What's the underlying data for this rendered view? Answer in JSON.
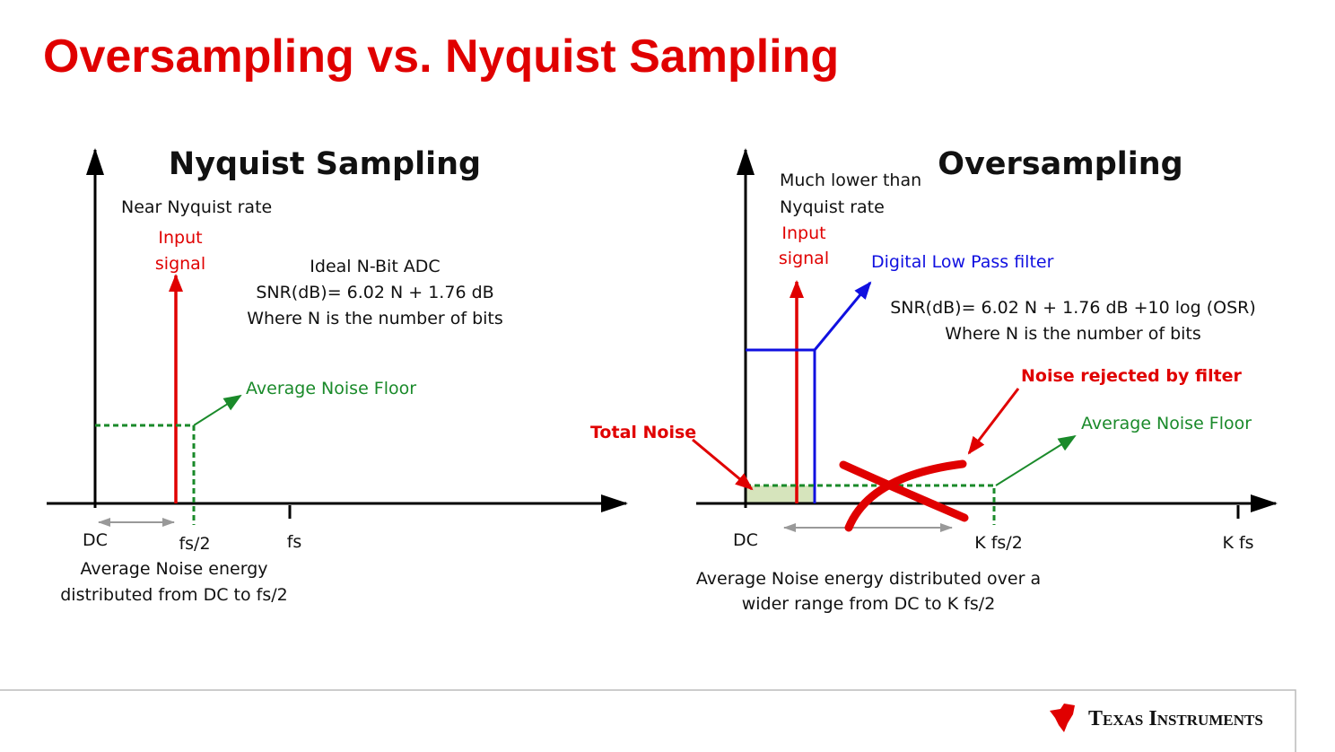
{
  "title": "Oversampling vs. Nyquist Sampling",
  "nyquist": {
    "title": "Nyquist Sampling",
    "rate_note": "Near Nyquist rate",
    "signal_label": [
      "Input",
      "signal"
    ],
    "adc_text": [
      "Ideal N-Bit ADC",
      "SNR(dB)= 6.02 N + 1.76 dB",
      "Where N is the number of bits"
    ],
    "noise_floor": "Average Noise Floor",
    "axis_labels": [
      "DC",
      "fs/2",
      "fs"
    ],
    "caption": [
      "Average Noise energy",
      "distributed from DC to fs/2"
    ]
  },
  "oversampling": {
    "title": "Oversampling",
    "rate_note": [
      "Much lower than",
      "Nyquist rate"
    ],
    "signal_label": [
      "Input",
      "signal"
    ],
    "filter_label": "Digital Low Pass filter",
    "snr_text": [
      "SNR(dB)= 6.02 N + 1.76 dB +10 log (OSR)",
      "Where N is the number of bits"
    ],
    "rejected_label": "Noise rejected by filter",
    "total_noise": "Total Noise",
    "noise_floor": "Average Noise Floor",
    "axis_labels": [
      "DC",
      "K fs/2",
      "K fs"
    ],
    "caption": [
      "Average Noise energy distributed over a",
      "wider range from DC to K fs/2"
    ]
  },
  "footer": {
    "logo": "Texas Instruments"
  }
}
